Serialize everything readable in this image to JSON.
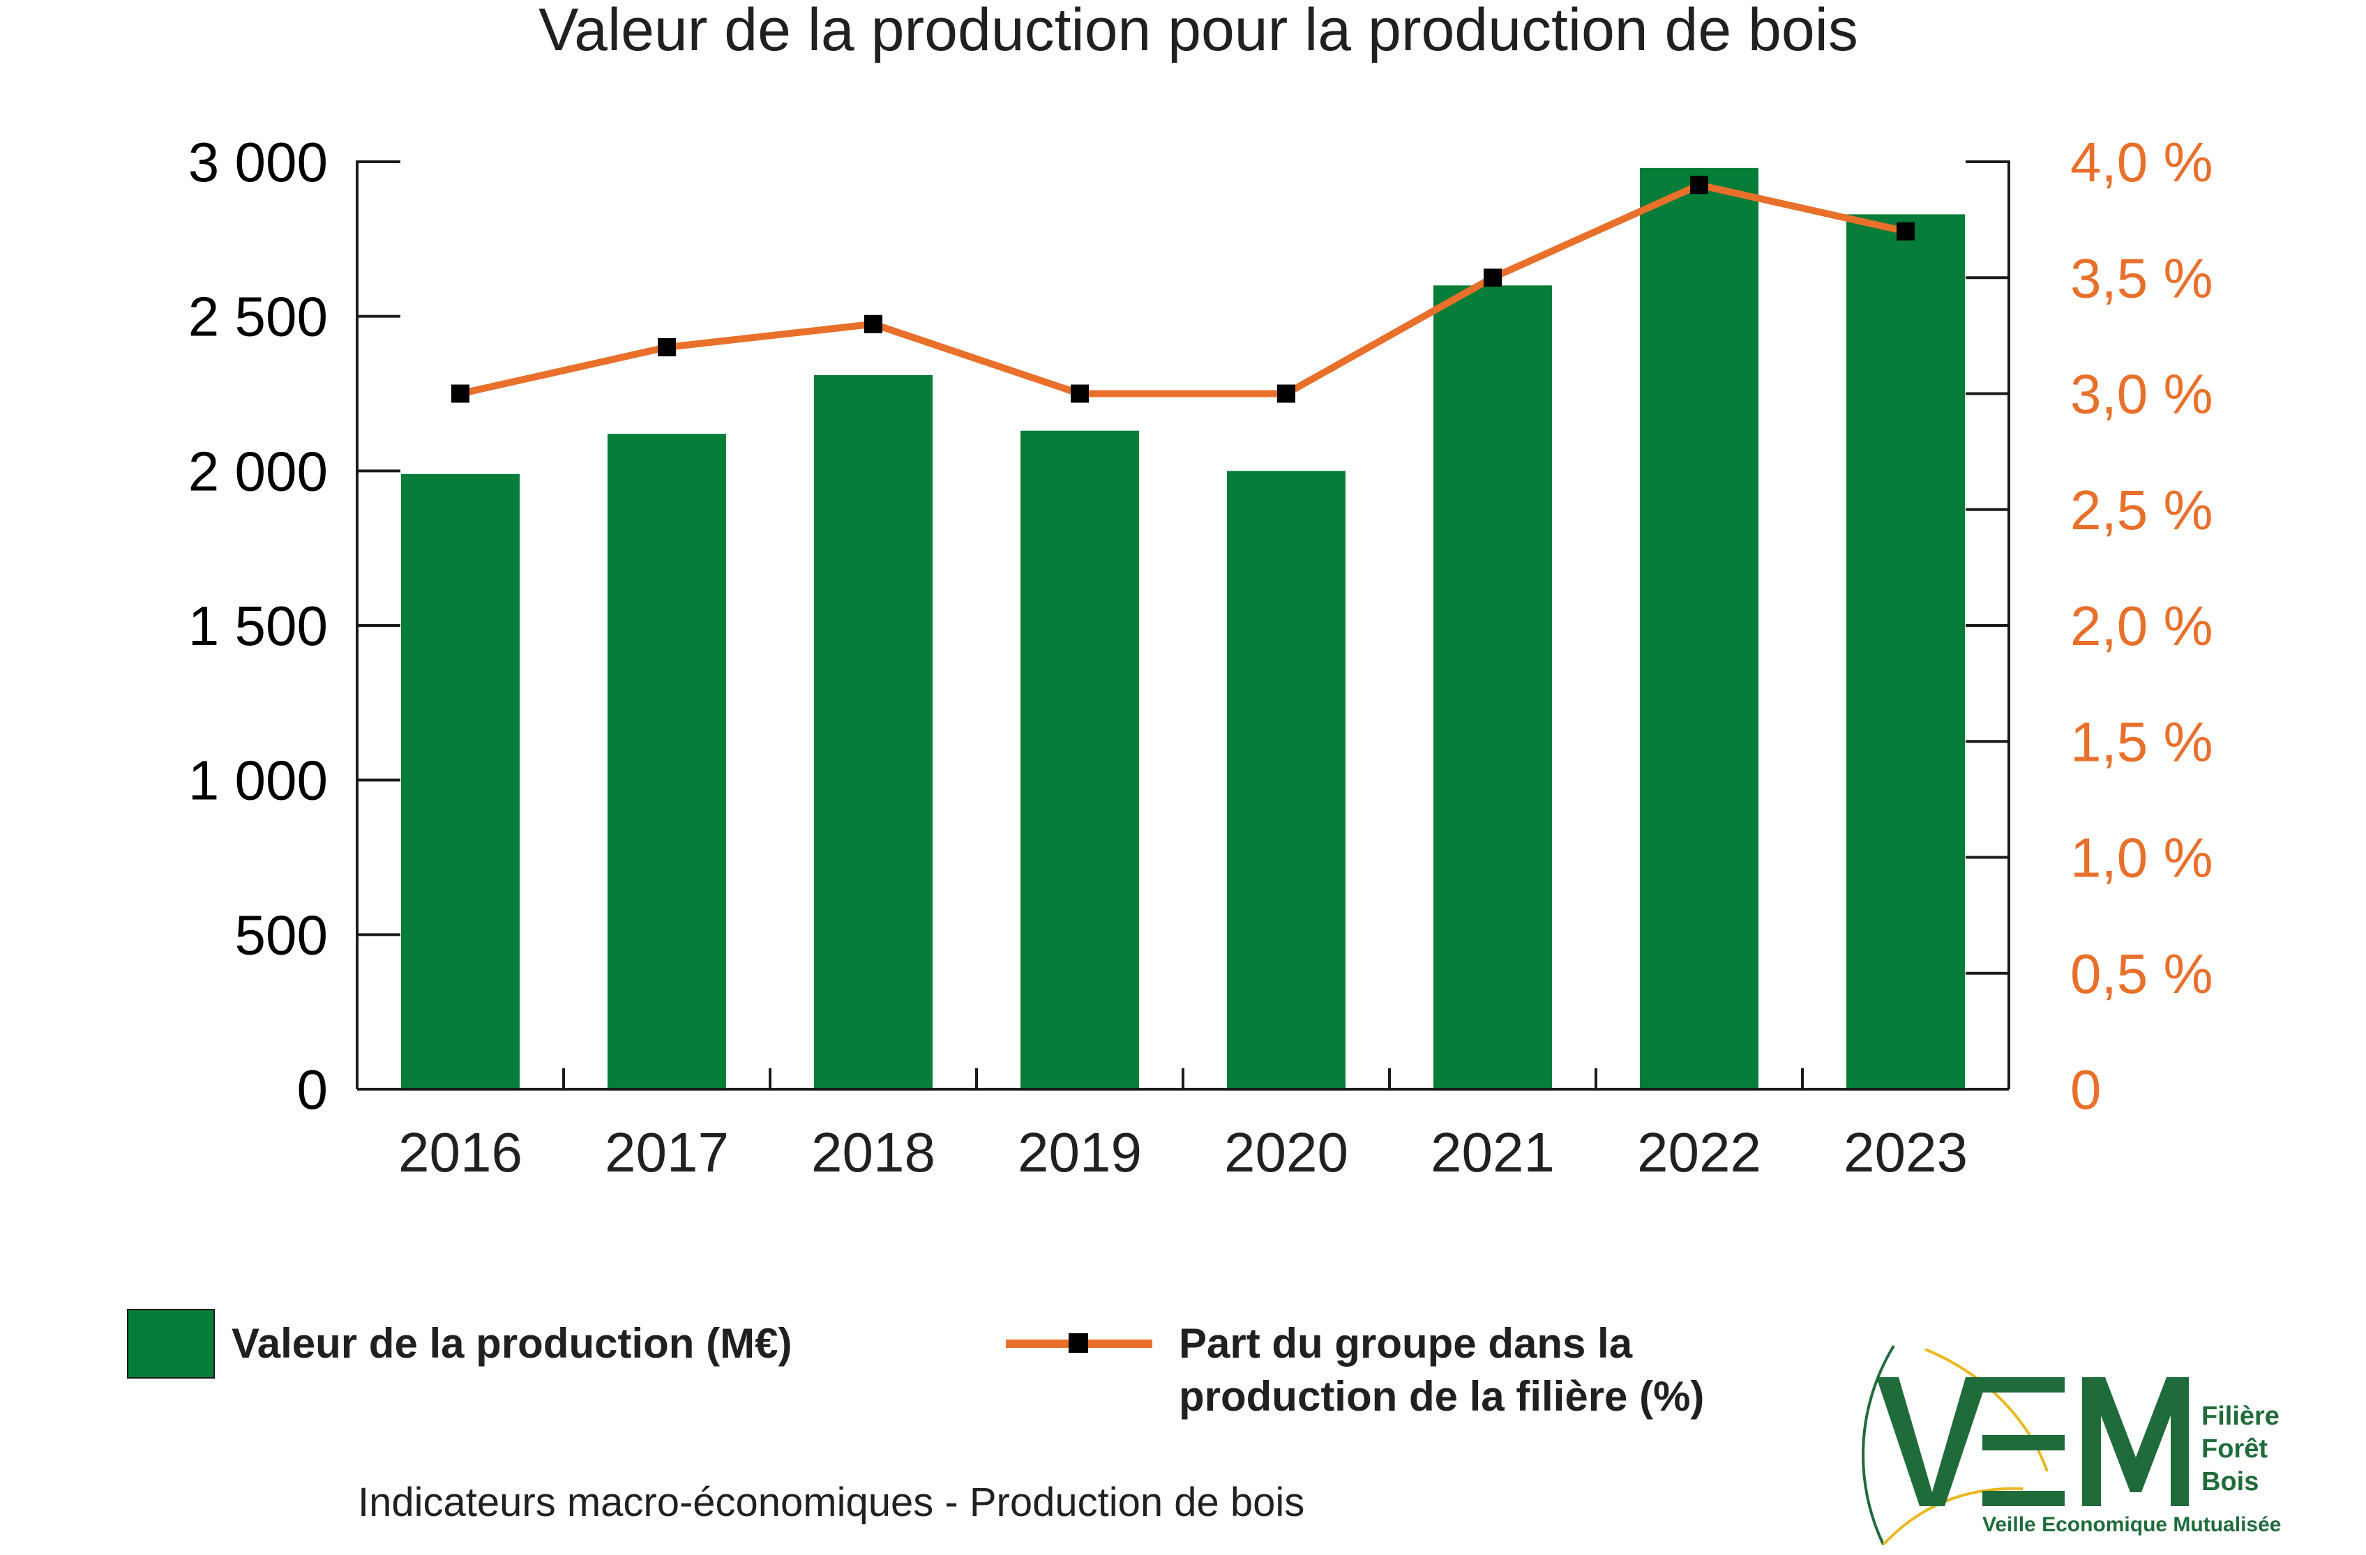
{
  "colors": {
    "bar": "#067d38",
    "line": "#e8702a",
    "right_axis_text": "#e8702a",
    "text": "#231f20",
    "logo_green": "#1f6b3a",
    "logo_yellow": "#e8b820"
  },
  "chart_data": {
    "type": "bar",
    "title": "Valeur de la production pour la production de bois",
    "categories": [
      "2016",
      "2017",
      "2018",
      "2019",
      "2020",
      "2021",
      "2022",
      "2023"
    ],
    "series": [
      {
        "name": "Valeur de la production (M€)",
        "type": "bar",
        "axis": "left",
        "values": [
          1990,
          2120,
          2310,
          2130,
          2000,
          2600,
          2980,
          2830
        ]
      },
      {
        "name": "Part du groupe dans la production de la filière (%)",
        "type": "line",
        "axis": "right",
        "values": [
          3.0,
          3.2,
          3.3,
          3.0,
          3.0,
          3.5,
          3.9,
          3.7
        ]
      }
    ],
    "y_left": {
      "lim": [
        0,
        3000
      ],
      "ticks": [
        0,
        500,
        1000,
        1500,
        2000,
        2500,
        3000
      ],
      "tick_labels": [
        "0",
        "500",
        "1 000",
        "1 500",
        "2 000",
        "2 500",
        "3 000"
      ]
    },
    "y_right": {
      "lim": [
        0,
        4.0
      ],
      "ticks": [
        0,
        0.5,
        1.0,
        1.5,
        2.0,
        2.5,
        3.0,
        3.5,
        4.0
      ],
      "tick_labels": [
        "0",
        "0,5 %",
        "1,0 %",
        "1,5 %",
        "2,0 %",
        "2,5 %",
        "3,0 %",
        "3,5 %",
        "4,0 %"
      ]
    },
    "grid": false,
    "legend": "bottom"
  },
  "legend": {
    "bar_label": "Valeur de la production (M€)",
    "line_label_line1": "Part du groupe dans la",
    "line_label_line2": "production de la filière (%)"
  },
  "footer": "Indicateurs macro-économiques - Production de bois",
  "logo": {
    "letters": "VEM",
    "line1": "Filière",
    "line2": "Forêt",
    "line3": "Bois",
    "tagline": "Veille Economique Mutualisée"
  }
}
